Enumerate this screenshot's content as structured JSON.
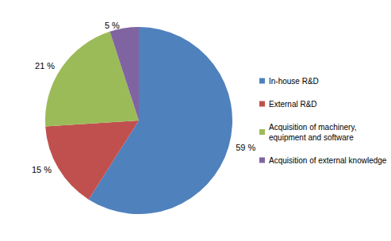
{
  "chart_data": {
    "type": "pie",
    "categories": [
      "In-house R&D",
      "External R&D",
      "Acquisition of machinery, equipment and software",
      "Acquisition of external knowledge"
    ],
    "values": [
      59,
      15,
      21,
      5
    ],
    "value_labels": [
      "59 %",
      "15 %",
      "21 %",
      "5 %"
    ],
    "colors": [
      "#4f81bd",
      "#c0504d",
      "#9bbb59",
      "#8064a2"
    ],
    "data_labels": true,
    "legend": "right"
  }
}
